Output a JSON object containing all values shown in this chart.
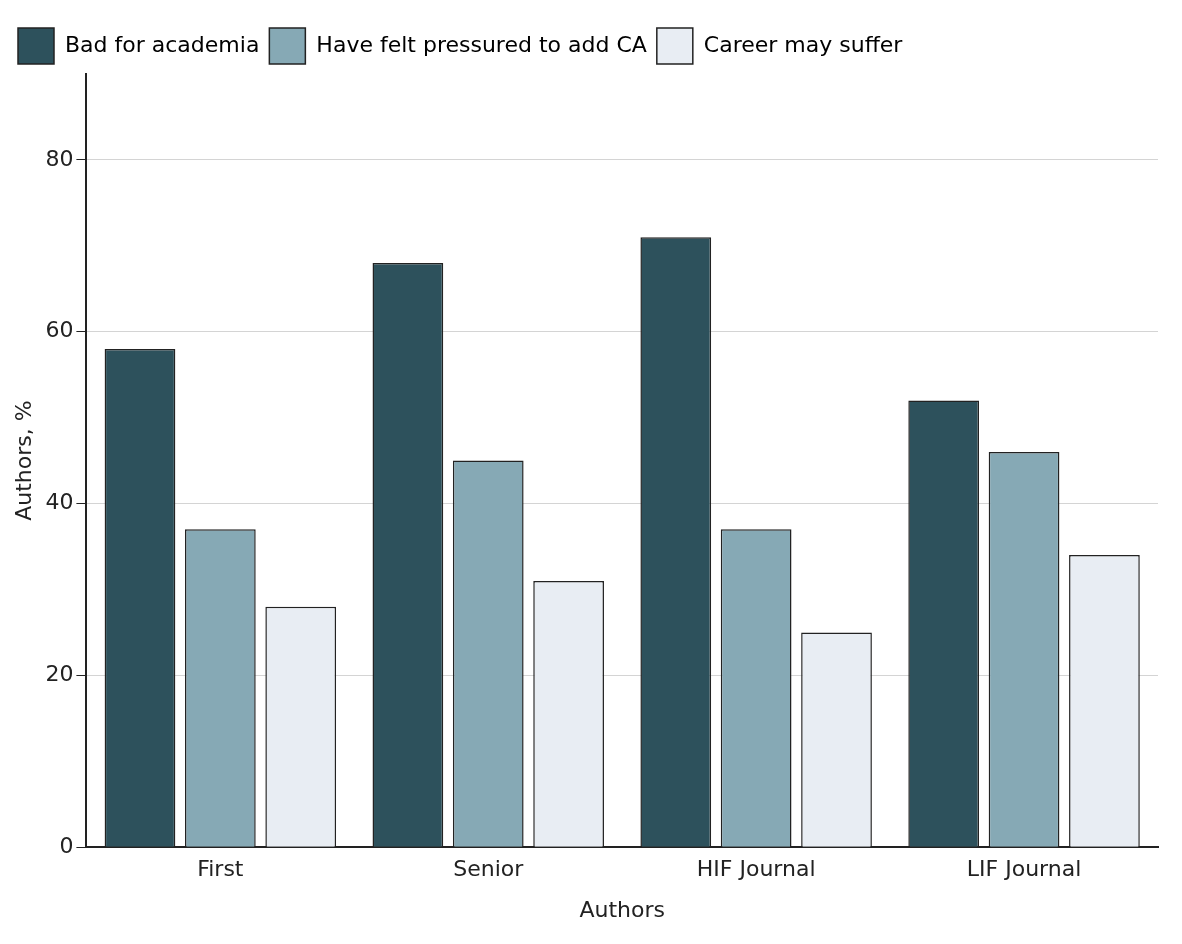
{
  "chart_data": {
    "type": "bar",
    "xlabel": "Authors",
    "ylabel": "Authors, %",
    "categories": [
      "First",
      "Senior",
      "HIF Journal",
      "LIF Journal"
    ],
    "series": [
      {
        "name": "Bad for academia",
        "color": "#2d515c",
        "values": [
          58,
          68,
          71,
          52
        ]
      },
      {
        "name": "Have felt pressured to add CA",
        "color": "#86a9b5",
        "values": [
          37,
          45,
          37,
          46
        ]
      },
      {
        "name": "Career may suffer",
        "color": "#e8edf3",
        "values": [
          28,
          31,
          25,
          34
        ]
      }
    ],
    "ylim": [
      0,
      90
    ],
    "yticks": [
      0,
      20,
      40,
      60,
      80
    ],
    "grid": "y",
    "legend": "top left"
  }
}
